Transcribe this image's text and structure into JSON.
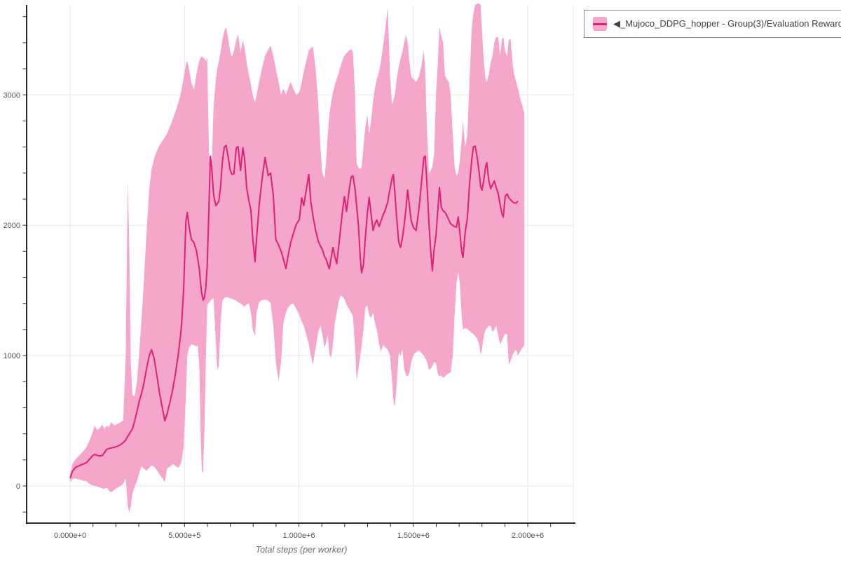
{
  "legend": {
    "label": "◀_Mujoco_DDPG_hopper - Group(3)/Evaluation Reward"
  },
  "axes": {
    "x_title": "Total steps (per worker)",
    "x_ticks": [
      {
        "steps": 0,
        "label": "0.000e+0"
      },
      {
        "steps": 500000,
        "label": "5.000e+5"
      },
      {
        "steps": 1000000,
        "label": "1.000e+6"
      },
      {
        "steps": 1500000,
        "label": "1.500e+6"
      },
      {
        "steps": 2000000,
        "label": "2.000e+6"
      }
    ],
    "y_ticks": [
      {
        "value": 0,
        "label": "0"
      },
      {
        "value": 1000,
        "label": "1000"
      },
      {
        "value": 2000,
        "label": "2000"
      },
      {
        "value": 3000,
        "label": "3000"
      }
    ]
  },
  "colors": {
    "mean_line": "#E02077",
    "band_fill": "#F4A7CB",
    "gridline": "#E7E7E7",
    "axis_line": "#2B2B2B",
    "tick_text": "#555555",
    "title_text": "#6E6E6E",
    "legend_border": "#8A8A8A",
    "legend_text": "#444444"
  },
  "chart_data": {
    "type": "line",
    "title": "",
    "xlabel": "Total steps (per worker)",
    "ylabel": "",
    "series": [
      {
        "name": "_Mujoco_DDPG_hopper - Group(3)/Evaluation Reward"
      }
    ],
    "legend_position": "top-right",
    "grid": true,
    "xlim": [
      -190000,
      2205000
    ],
    "ylim": [
      -285,
      3690
    ],
    "x_minor_tick_step": 100000,
    "y_minor_tick_step": 200,
    "points_format": [
      "steps_in_thousands",
      "band_low",
      "mean",
      "band_high"
    ],
    "points": [
      [
        0,
        30,
        60,
        85
      ],
      [
        10,
        55,
        112,
        170
      ],
      [
        22,
        57,
        140,
        200
      ],
      [
        35,
        52,
        152,
        225
      ],
      [
        48,
        47,
        162,
        250
      ],
      [
        60,
        40,
        170,
        272
      ],
      [
        72,
        36,
        180,
        300
      ],
      [
        85,
        15,
        205,
        350
      ],
      [
        97,
        6,
        230,
        405
      ],
      [
        108,
        0,
        242,
        464
      ],
      [
        118,
        -5,
        235,
        430
      ],
      [
        128,
        -10,
        230,
        440
      ],
      [
        140,
        -18,
        233,
        470
      ],
      [
        150,
        -22,
        255,
        438
      ],
      [
        160,
        -12,
        282,
        462
      ],
      [
        170,
        -38,
        287,
        452
      ],
      [
        180,
        -48,
        292,
        490
      ],
      [
        193,
        -30,
        297,
        465
      ],
      [
        207,
        -12,
        305,
        476
      ],
      [
        220,
        0,
        317,
        488
      ],
      [
        232,
        18,
        332,
        505
      ],
      [
        243,
        55,
        352,
        1000
      ],
      [
        252,
        -150,
        382,
        2330
      ],
      [
        258,
        -203,
        398,
        1900
      ],
      [
        265,
        -158,
        418,
        950
      ],
      [
        272,
        -60,
        438,
        700
      ],
      [
        282,
        -5,
        498,
        688
      ],
      [
        292,
        35,
        570,
        800
      ],
      [
        302,
        98,
        648,
        1020
      ],
      [
        312,
        150,
        710,
        1280
      ],
      [
        322,
        133,
        782,
        1560
      ],
      [
        334,
        118,
        900,
        1950
      ],
      [
        346,
        140,
        1000,
        2280
      ],
      [
        356,
        158,
        1045,
        2430
      ],
      [
        367,
        148,
        980,
        2510
      ],
      [
        379,
        122,
        850,
        2570
      ],
      [
        391,
        88,
        710,
        2615
      ],
      [
        403,
        60,
        598,
        2645
      ],
      [
        414,
        30,
        500,
        2675
      ],
      [
        424,
        133,
        555,
        2705
      ],
      [
        436,
        148,
        642,
        2755
      ],
      [
        449,
        168,
        745,
        2815
      ],
      [
        461,
        152,
        870,
        2875
      ],
      [
        474,
        140,
        1025,
        2945
      ],
      [
        486,
        180,
        1210,
        3030
      ],
      [
        496,
        300,
        1500,
        3130
      ],
      [
        506,
        700,
        2030,
        3230
      ],
      [
        512,
        1000,
        2098,
        3262
      ],
      [
        520,
        1060,
        1990,
        3195
      ],
      [
        530,
        1085,
        1890,
        3095
      ],
      [
        541,
        1080,
        1868,
        3040
      ],
      [
        552,
        1070,
        1805,
        3155
      ],
      [
        558,
        1078,
        1740,
        3210
      ],
      [
        565,
        900,
        1660,
        3265
      ],
      [
        571,
        350,
        1540,
        3285
      ],
      [
        576,
        100,
        1470,
        3295
      ],
      [
        581,
        115,
        1425,
        3285
      ],
      [
        587,
        420,
        1445,
        3280
      ],
      [
        593,
        950,
        1520,
        3260
      ],
      [
        599,
        1385,
        1680,
        3290
      ],
      [
        607,
        1405,
        2150,
        2550
      ],
      [
        613,
        1420,
        2530,
        2420
      ],
      [
        619,
        1432,
        2440,
        2480
      ],
      [
        627,
        1442,
        2235,
        2900
      ],
      [
        637,
        1100,
        2150,
        3120
      ],
      [
        643,
        890,
        2165,
        3200
      ],
      [
        650,
        920,
        2185,
        3260
      ],
      [
        658,
        1250,
        2300,
        3330
      ],
      [
        665,
        1420,
        2480,
        3420
      ],
      [
        674,
        1440,
        2600,
        3490
      ],
      [
        682,
        1450,
        2612,
        3520
      ],
      [
        691,
        1445,
        2520,
        3430
      ],
      [
        699,
        1440,
        2425,
        3340
      ],
      [
        707,
        1435,
        2390,
        3290
      ],
      [
        716,
        1430,
        2395,
        3340
      ],
      [
        726,
        1420,
        2590,
        3420
      ],
      [
        734,
        1410,
        2605,
        3465
      ],
      [
        745,
        1400,
        2420,
        3330
      ],
      [
        755,
        1385,
        2595,
        3420
      ],
      [
        763,
        1375,
        2500,
        3360
      ],
      [
        772,
        1395,
        2280,
        3240
      ],
      [
        782,
        1400,
        2180,
        3150
      ],
      [
        790,
        1330,
        2115,
        3080
      ],
      [
        798,
        1200,
        1900,
        3000
      ],
      [
        808,
        1150,
        1720,
        2940
      ],
      [
        815,
        1330,
        1900,
        3000
      ],
      [
        826,
        1410,
        2150,
        3100
      ],
      [
        838,
        1425,
        2340,
        3200
      ],
      [
        852,
        1430,
        2520,
        3300
      ],
      [
        866,
        1420,
        2380,
        3350
      ],
      [
        876,
        1405,
        2400,
        3380
      ],
      [
        888,
        1230,
        2230,
        3300
      ],
      [
        899,
        950,
        1890,
        3200
      ],
      [
        911,
        805,
        1850,
        3100
      ],
      [
        922,
        950,
        1800,
        3000
      ],
      [
        932,
        1250,
        1740,
        3050
      ],
      [
        943,
        1330,
        1668,
        3000
      ],
      [
        953,
        1370,
        1770,
        3050
      ],
      [
        963,
        1390,
        1860,
        3100
      ],
      [
        975,
        1400,
        1935,
        3050
      ],
      [
        988,
        1360,
        2005,
        3000
      ],
      [
        1002,
        1310,
        2045,
        3020
      ],
      [
        1012,
        1260,
        2210,
        3100
      ],
      [
        1021,
        1230,
        2150,
        3180
      ],
      [
        1032,
        1160,
        2270,
        3260
      ],
      [
        1043,
        1090,
        2390,
        3340
      ],
      [
        1052,
        1000,
        2180,
        3360
      ],
      [
        1061,
        930,
        2075,
        3370
      ],
      [
        1073,
        1060,
        1960,
        3200
      ],
      [
        1084,
        1180,
        1880,
        2950
      ],
      [
        1094,
        1230,
        1840,
        2600
      ],
      [
        1102,
        1165,
        1815,
        2400
      ],
      [
        1112,
        1060,
        1760,
        2360
      ],
      [
        1119,
        1100,
        1738,
        2500
      ],
      [
        1126,
        1160,
        1700,
        2700
      ],
      [
        1133,
        1005,
        1665,
        2850
      ],
      [
        1141,
        985,
        1755,
        2950
      ],
      [
        1149,
        1100,
        1830,
        3020
      ],
      [
        1157,
        1250,
        1760,
        3080
      ],
      [
        1165,
        1330,
        1705,
        3120
      ],
      [
        1174,
        1420,
        1840,
        3170
      ],
      [
        1182,
        1460,
        1975,
        3220
      ],
      [
        1191,
        1450,
        2120,
        3270
      ],
      [
        1199,
        1430,
        2220,
        3300
      ],
      [
        1208,
        1390,
        2105,
        3320
      ],
      [
        1218,
        1360,
        2250,
        3340
      ],
      [
        1228,
        1330,
        2370,
        3350
      ],
      [
        1236,
        1300,
        2380,
        3330
      ],
      [
        1245,
        1070,
        2280,
        3000
      ],
      [
        1252,
        810,
        2150,
        2480
      ],
      [
        1260,
        900,
        2000,
        2440
      ],
      [
        1268,
        1000,
        1750,
        2430
      ],
      [
        1274,
        1080,
        1635,
        2450
      ],
      [
        1282,
        1200,
        1700,
        2600
      ],
      [
        1290,
        1370,
        1900,
        2750
      ],
      [
        1299,
        1385,
        2090,
        2850
      ],
      [
        1307,
        1310,
        2215,
        2700
      ],
      [
        1315,
        1290,
        2090,
        2800
      ],
      [
        1324,
        1330,
        1960,
        2950
      ],
      [
        1332,
        1250,
        2010,
        3050
      ],
      [
        1340,
        1200,
        2040,
        3120
      ],
      [
        1350,
        1090,
        1990,
        3180
      ],
      [
        1358,
        1030,
        2030,
        3250
      ],
      [
        1368,
        1080,
        2080,
        3380
      ],
      [
        1377,
        1065,
        2115,
        3500
      ],
      [
        1388,
        1045,
        2180,
        3670
      ],
      [
        1398,
        1000,
        2280,
        3150
      ],
      [
        1407,
        800,
        2360,
        2920
      ],
      [
        1413,
        650,
        2390,
        2960
      ],
      [
        1419,
        607,
        2250,
        3000
      ],
      [
        1427,
        780,
        2060,
        3120
      ],
      [
        1436,
        1020,
        1870,
        3215
      ],
      [
        1444,
        1000,
        1830,
        3280
      ],
      [
        1452,
        1045,
        1900,
        3330
      ],
      [
        1460,
        900,
        2005,
        3400
      ],
      [
        1468,
        850,
        2130,
        3460
      ],
      [
        1475,
        840,
        2270,
        3400
      ],
      [
        1483,
        870,
        2150,
        3250
      ],
      [
        1491,
        950,
        2030,
        3140
      ],
      [
        1501,
        1010,
        1980,
        3120
      ],
      [
        1512,
        1025,
        1960,
        3100
      ],
      [
        1524,
        1040,
        2120,
        3140
      ],
      [
        1535,
        1020,
        2320,
        3220
      ],
      [
        1546,
        1000,
        2520,
        3340
      ],
      [
        1552,
        980,
        2530,
        3180
      ],
      [
        1560,
        950,
        2300,
        2700
      ],
      [
        1568,
        891,
        2020,
        2400
      ],
      [
        1576,
        900,
        1800,
        2420
      ],
      [
        1583,
        920,
        1650,
        2450
      ],
      [
        1591,
        950,
        1820,
        2550
      ],
      [
        1599,
        940,
        1920,
        3000
      ],
      [
        1607,
        860,
        2120,
        3250
      ],
      [
        1614,
        840,
        2290,
        3520
      ],
      [
        1622,
        850,
        2140,
        3450
      ],
      [
        1630,
        830,
        2110,
        3400
      ],
      [
        1638,
        840,
        2100,
        3150
      ],
      [
        1646,
        855,
        2075,
        3120
      ],
      [
        1655,
        865,
        2042,
        3100
      ],
      [
        1663,
        870,
        2010,
        3000
      ],
      [
        1672,
        1000,
        2000,
        2700
      ],
      [
        1680,
        1300,
        1990,
        2450
      ],
      [
        1688,
        1550,
        1985,
        2380
      ],
      [
        1696,
        1640,
        2065,
        2400
      ],
      [
        1703,
        1550,
        1950,
        2500
      ],
      [
        1711,
        1300,
        1800,
        2650
      ],
      [
        1717,
        1200,
        1752,
        2800
      ],
      [
        1726,
        1210,
        1940,
        2600
      ],
      [
        1736,
        1205,
        2055,
        2700
      ],
      [
        1745,
        1190,
        2300,
        3100
      ],
      [
        1755,
        1175,
        2500,
        3500
      ],
      [
        1762,
        1165,
        2600,
        3620
      ],
      [
        1770,
        1150,
        2608,
        3690
      ],
      [
        1779,
        1130,
        2520,
        3700
      ],
      [
        1788,
        1080,
        2400,
        3700
      ],
      [
        1794,
        1005,
        2295,
        3690
      ],
      [
        1800,
        1050,
        2270,
        3500
      ],
      [
        1808,
        1150,
        2350,
        3250
      ],
      [
        1816,
        1200,
        2450,
        3120
      ],
      [
        1821,
        1210,
        2480,
        3100
      ],
      [
        1829,
        1225,
        2350,
        3150
      ],
      [
        1838,
        1230,
        2280,
        3250
      ],
      [
        1846,
        1180,
        2310,
        3300
      ],
      [
        1854,
        1200,
        2340,
        3400
      ],
      [
        1862,
        1230,
        2290,
        3445
      ],
      [
        1871,
        1150,
        2240,
        3440
      ],
      [
        1879,
        1085,
        2160,
        3300
      ],
      [
        1887,
        1110,
        2090,
        3430
      ],
      [
        1893,
        1140,
        2062,
        3440
      ],
      [
        1901,
        1170,
        2220,
        3330
      ],
      [
        1910,
        1160,
        2240,
        3300
      ],
      [
        1917,
        930,
        2210,
        3420
      ],
      [
        1925,
        960,
        2195,
        3430
      ],
      [
        1933,
        1000,
        2180,
        3250
      ],
      [
        1941,
        1030,
        2172,
        3150
      ],
      [
        1949,
        1045,
        2170,
        3100
      ],
      [
        1957,
        1000,
        2185,
        3050
      ],
      [
        1966,
        1030,
        null,
        2980
      ],
      [
        1976,
        1060,
        null,
        2920
      ],
      [
        1985,
        1080,
        null,
        2860
      ]
    ]
  }
}
